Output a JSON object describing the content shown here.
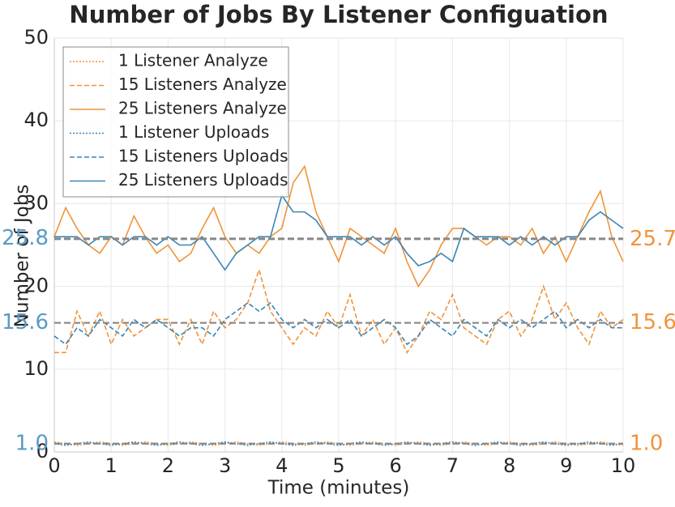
{
  "chart_data": {
    "type": "line",
    "title": "Number of Jobs By Listener Configuation",
    "x_label": "Time (minutes)",
    "y_label": "Number of Jobs",
    "x": [
      0,
      0.2,
      0.4,
      0.6,
      0.8,
      1,
      1.2,
      1.4,
      1.6,
      1.8,
      2,
      2.2,
      2.4,
      2.6,
      2.8,
      3,
      3.2,
      3.4,
      3.6,
      3.8,
      4,
      4.2,
      4.4,
      4.6,
      4.8,
      5,
      5.2,
      5.4,
      5.6,
      5.8,
      6,
      6.2,
      6.4,
      6.6,
      6.8,
      7,
      7.2,
      7.4,
      7.6,
      7.8,
      8,
      8.2,
      8.4,
      8.6,
      8.8,
      9,
      9.2,
      9.4,
      9.6,
      9.8,
      10
    ],
    "series": [
      {
        "name": "1 Listener Analyze",
        "color": "#f0943a",
        "linestyle": "dotted",
        "values": [
          1.2,
          1,
          0.8,
          1,
          1.2,
          1,
          0.8,
          1,
          1.2,
          1,
          0.8,
          1,
          1.2,
          1,
          0.8,
          1,
          1.2,
          1,
          0.8,
          1,
          1.2,
          1,
          0.8,
          1,
          1.2,
          1,
          0.8,
          1,
          1.2,
          1,
          0.8,
          1,
          1.2,
          1,
          0.8,
          1,
          1.2,
          1,
          0.8,
          1,
          1.2,
          1,
          0.8,
          1,
          1.2,
          1,
          0.8,
          1,
          1.2,
          1,
          0.8
        ]
      },
      {
        "name": "15 Listeners Analyze",
        "color": "#f0943a",
        "linestyle": "dashed",
        "values": [
          12,
          12,
          17,
          14,
          17,
          13,
          16,
          14,
          15,
          16,
          16,
          13,
          16,
          13,
          17,
          15,
          16,
          18,
          22,
          17,
          15,
          13,
          15,
          14,
          17,
          15,
          19,
          14,
          16,
          13,
          15,
          12,
          14,
          17,
          16,
          19,
          15,
          14,
          13,
          16,
          17,
          14,
          16,
          20,
          16,
          18,
          15,
          13,
          17,
          15,
          16
        ]
      },
      {
        "name": "25 Listeners Analyze",
        "color": "#f0943a",
        "linestyle": "solid",
        "values": [
          26,
          29.5,
          27,
          25,
          24,
          26,
          25,
          28.5,
          26,
          24,
          25,
          23,
          24,
          27,
          29.5,
          26,
          24,
          25,
          24,
          26,
          27,
          32.5,
          34.5,
          29,
          26,
          23,
          27,
          26,
          25,
          24,
          27,
          23,
          20,
          22,
          25,
          27,
          27,
          26,
          25,
          26,
          26,
          25,
          27,
          24,
          26,
          23,
          26,
          29,
          31.5,
          26,
          23
        ]
      },
      {
        "name": "1 Listener Uploads",
        "color": "#3a85b5",
        "linestyle": "dotted",
        "values": [
          1,
          0.8,
          1,
          1.2,
          1,
          0.8,
          1,
          1.2,
          1,
          0.8,
          1,
          1.2,
          1,
          0.8,
          1,
          1.2,
          1,
          0.8,
          1,
          1.2,
          1,
          0.8,
          1,
          1.2,
          1,
          0.8,
          1,
          1.2,
          1,
          0.8,
          1,
          1.2,
          1,
          0.8,
          1,
          1.2,
          1,
          0.8,
          1,
          1.2,
          1,
          0.8,
          1,
          1.2,
          1,
          0.8,
          1,
          1.2,
          1,
          0.8,
          1
        ]
      },
      {
        "name": "15 Listeners Uploads",
        "color": "#3a85b5",
        "linestyle": "dashed",
        "values": [
          14,
          13,
          15,
          14,
          16,
          15,
          14,
          16,
          15,
          16,
          15,
          14,
          15,
          15,
          14,
          16,
          17,
          18,
          17,
          18,
          16,
          15,
          16,
          15,
          16,
          15,
          16,
          14,
          15,
          16,
          15,
          13,
          14,
          16,
          15,
          14,
          16,
          15,
          14,
          16,
          15,
          16,
          15,
          16,
          17,
          15,
          16,
          15,
          16,
          15,
          15
        ]
      },
      {
        "name": "25 Listeners Uploads",
        "color": "#3a85b5",
        "linestyle": "solid",
        "values": [
          26,
          26,
          26,
          25,
          26,
          26,
          25,
          26,
          26,
          25,
          26,
          25,
          25,
          26,
          24,
          22,
          24,
          25,
          26,
          26,
          31,
          29,
          29,
          28,
          26,
          26,
          26,
          25,
          26,
          25,
          26,
          24,
          22.5,
          23,
          24,
          23,
          27,
          26,
          26,
          26,
          25,
          26,
          25,
          26,
          25,
          26,
          26,
          28,
          29,
          28,
          27
        ]
      }
    ],
    "reference_lines": [
      {
        "value": 25.8,
        "label": "25.8",
        "side": "left",
        "color": "#5a9bc4"
      },
      {
        "value": 15.6,
        "label": "15.6",
        "side": "left",
        "color": "#5a9bc4"
      },
      {
        "value": 1.0,
        "label": "1.0",
        "side": "left",
        "color": "#5a9bc4"
      },
      {
        "value": 25.7,
        "label": "25.7",
        "side": "right",
        "color": "#f0943a"
      },
      {
        "value": 15.6,
        "label": "15.6",
        "side": "right",
        "color": "#f0943a"
      },
      {
        "value": 1.0,
        "label": "1.0",
        "side": "right",
        "color": "#f0943a"
      }
    ],
    "xlim": [
      0,
      10
    ],
    "xticks": [
      0,
      1,
      2,
      3,
      4,
      5,
      6,
      7,
      8,
      9,
      10
    ],
    "ylim": [
      0,
      50
    ],
    "yticks": [
      0,
      10,
      20,
      30,
      40,
      50
    ],
    "grid": true,
    "legend": "upper left"
  }
}
